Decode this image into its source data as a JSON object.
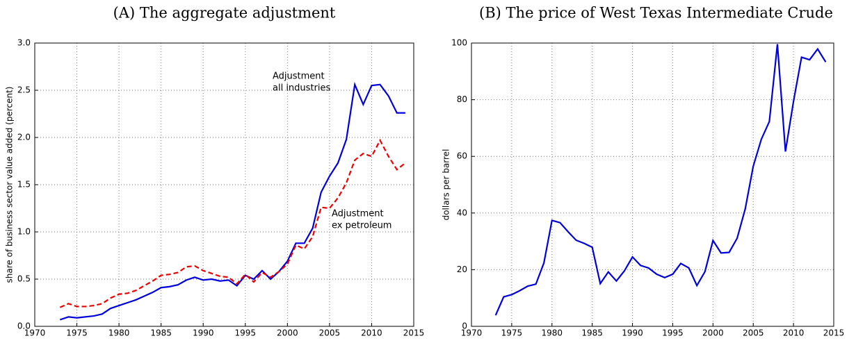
{
  "chart_data": [
    {
      "type": "line",
      "title": "(A) The aggregate adjustment",
      "ylabel": "share of business sector value added (percent)",
      "x": [
        1973,
        1974,
        1975,
        1976,
        1977,
        1978,
        1979,
        1980,
        1981,
        1982,
        1983,
        1984,
        1985,
        1986,
        1987,
        1988,
        1989,
        1990,
        1991,
        1992,
        1993,
        1994,
        1995,
        1996,
        1997,
        1998,
        1999,
        2000,
        2001,
        2002,
        2003,
        2004,
        2005,
        2006,
        2007,
        2008,
        2009,
        2010,
        2011,
        2012,
        2013,
        2014
      ],
      "series": [
        {
          "color": "#0000dd",
          "dash": false,
          "values": [
            0.07,
            0.1,
            0.09,
            0.1,
            0.11,
            0.13,
            0.19,
            0.22,
            0.25,
            0.28,
            0.32,
            0.36,
            0.41,
            0.42,
            0.44,
            0.49,
            0.52,
            0.49,
            0.5,
            0.48,
            0.49,
            0.43,
            0.54,
            0.5,
            0.59,
            0.5,
            0.58,
            0.69,
            0.88,
            0.88,
            1.04,
            1.42,
            1.59,
            1.73,
            1.98,
            2.56,
            2.35,
            2.55,
            2.56,
            2.44,
            2.26,
            2.26
          ]
        },
        {
          "color": "#ee0000",
          "dash": true,
          "values": [
            0.2,
            0.24,
            0.21,
            0.21,
            0.22,
            0.24,
            0.3,
            0.34,
            0.35,
            0.38,
            0.43,
            0.48,
            0.54,
            0.55,
            0.57,
            0.63,
            0.64,
            0.59,
            0.56,
            0.53,
            0.52,
            0.45,
            0.55,
            0.47,
            0.57,
            0.52,
            0.58,
            0.66,
            0.86,
            0.82,
            0.95,
            1.26,
            1.25,
            1.36,
            1.52,
            1.76,
            1.83,
            1.8,
            1.97,
            1.8,
            1.66,
            1.73
          ]
        }
      ],
      "annotations": [
        [
          "Adjustment",
          "all industries"
        ],
        [
          "Adjustment",
          "ex petroleum"
        ]
      ],
      "xlim": [
        1970,
        2015
      ],
      "xticks": [
        1970,
        1975,
        1980,
        1985,
        1990,
        1995,
        2000,
        2005,
        2010,
        2015
      ],
      "ylim": [
        0,
        3
      ],
      "yticks": [
        {
          "value": 0,
          "label": "0.0"
        },
        0.5,
        {
          "value": 1,
          "label": "1.0"
        },
        1.5,
        {
          "value": 2,
          "label": "2.0"
        },
        2.5,
        {
          "value": 3,
          "label": "3.0"
        }
      ],
      "grid": true
    },
    {
      "type": "line",
      "title": "(B) The price of West Texas Intermediate Crude",
      "ylabel": "dollars per barrel",
      "x": [
        1973,
        1974,
        1975,
        1976,
        1977,
        1978,
        1979,
        1980,
        1981,
        1982,
        1983,
        1984,
        1985,
        1986,
        1987,
        1988,
        1989,
        1990,
        1991,
        1992,
        1993,
        1994,
        1995,
        1996,
        1997,
        1998,
        1999,
        2000,
        2001,
        2002,
        2003,
        2004,
        2005,
        2006,
        2007,
        2008,
        2009,
        2010,
        2011,
        2012,
        2013,
        2014
      ],
      "series": [
        {
          "color": "#0000dd",
          "dash": false,
          "values": [
            3.9,
            10.4,
            11.2,
            12.6,
            14.2,
            14.9,
            22.4,
            37.4,
            36.6,
            33.4,
            30.4,
            29.3,
            27.9,
            15.1,
            19.2,
            16.0,
            19.6,
            24.5,
            21.5,
            20.6,
            18.4,
            17.2,
            18.4,
            22.2,
            20.6,
            14.4,
            19.3,
            30.3,
            25.9,
            26.1,
            31.1,
            41.4,
            56.5,
            66.0,
            72.3,
            99.6,
            61.7,
            79.4,
            95.0,
            94.1,
            97.9,
            93.3
          ]
        }
      ],
      "xlim": [
        1970,
        2015
      ],
      "xticks": [
        1970,
        1975,
        1980,
        1985,
        1990,
        1995,
        2000,
        2005,
        2010,
        2015
      ],
      "ylim": [
        0,
        100
      ],
      "yticks": [
        0,
        20,
        40,
        60,
        80,
        100
      ],
      "grid": true
    }
  ]
}
